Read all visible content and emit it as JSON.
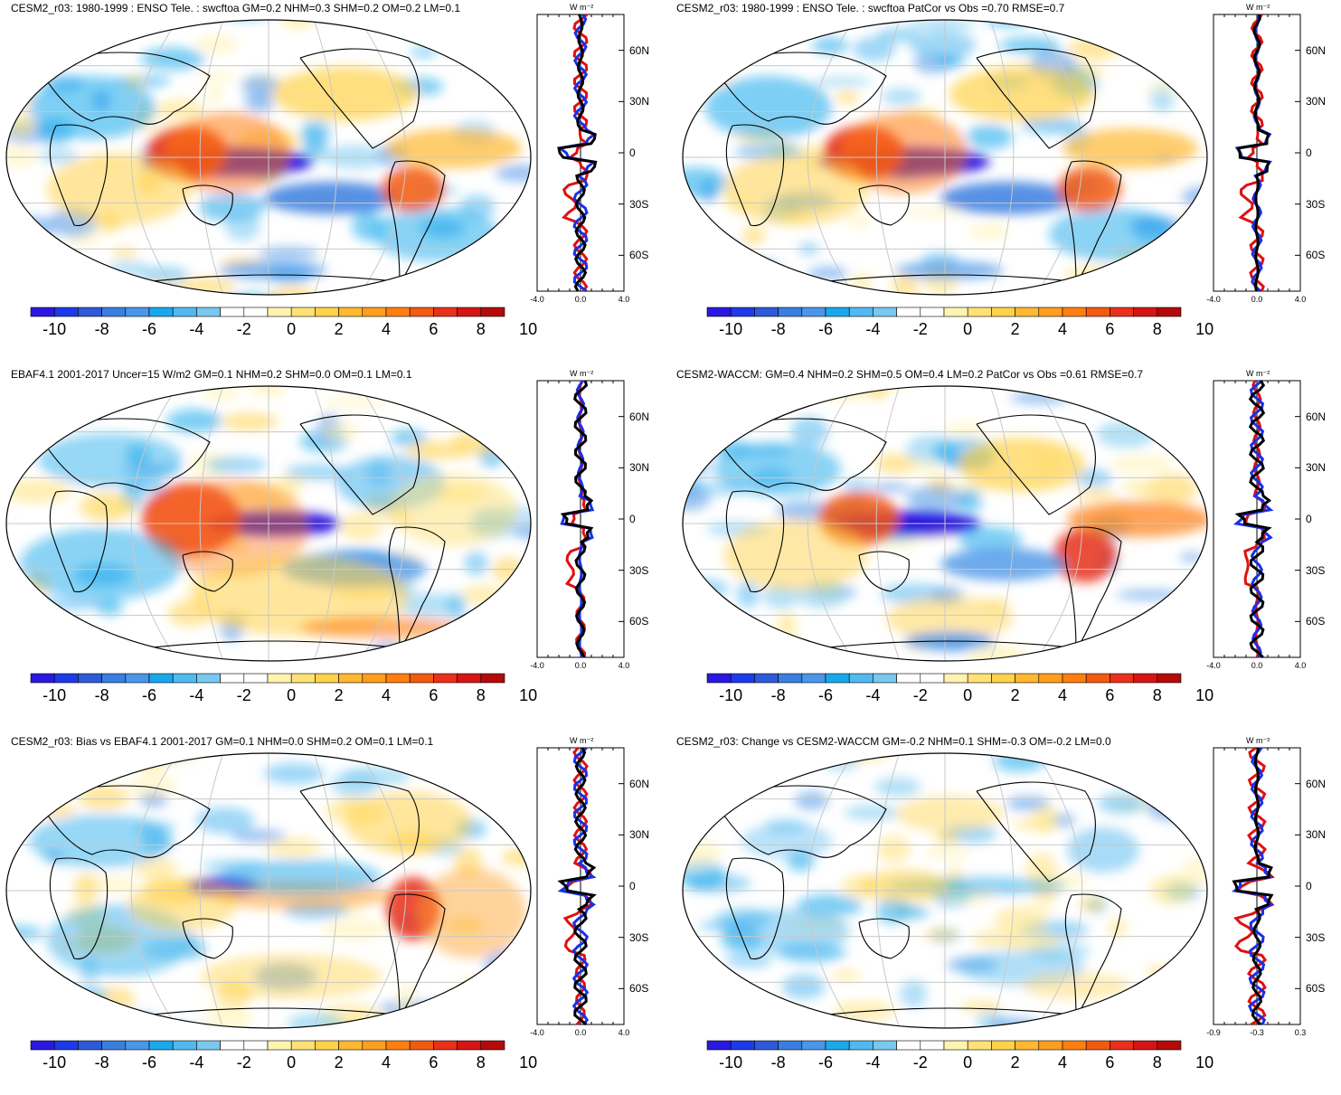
{
  "colorbar": {
    "colors": [
      "#2a18e0",
      "#1c3ae8",
      "#2e5ad8",
      "#3a7ee0",
      "#4a96e8",
      "#1aa8ec",
      "#52b8f0",
      "#78c8f0",
      "#ffffff",
      "#ffffff",
      "#fff3b0",
      "#ffe176",
      "#ffd24a",
      "#ffb830",
      "#ff9e1e",
      "#ff7e10",
      "#f25a10",
      "#e8301a",
      "#d61414",
      "#b40a0a"
    ],
    "labels": [
      "-10",
      "-8",
      "-6",
      "-4",
      "-2",
      "0",
      "2",
      "4",
      "6",
      "8",
      "10"
    ]
  },
  "latitudes": [
    "60N",
    "30N",
    "0",
    "30S",
    "60S"
  ],
  "units": "W m⁻²",
  "panels": [
    {
      "id": "p1",
      "title": "CESM2_r03: 1980-1999 : ENSO Tele. : swcftoa GM=0.2 NHM=0.3 SHM=0.2 OM=0.2 LM=0.1",
      "xticks": [
        "-4.0",
        "0.0",
        "4.0"
      ]
    },
    {
      "id": "p2",
      "title": "CESM2_r03: 1980-1999 : ENSO Tele. : swcftoa PatCor vs Obs =0.70 RMSE=0.7",
      "xticks": [
        "-4.0",
        "0.0",
        "4.0"
      ]
    },
    {
      "id": "p3",
      "title": "EBAF4.1 2001-2017 Uncer=15 W/m2 GM=0.1 NHM=0.2 SHM=0.0 OM=0.1 LM=0.1",
      "xticks": [
        "-4.0",
        "0.0",
        "4.0"
      ]
    },
    {
      "id": "p4",
      "title": "CESM2-WACCM: GM=0.4 NHM=0.2 SHM=0.5 OM=0.4 LM=0.2 PatCor vs Obs =0.61 RMSE=0.7",
      "xticks": [
        "-4.0",
        "0.0",
        "4.0"
      ]
    },
    {
      "id": "p5",
      "title": "CESM2_r03: Bias vs EBAF4.1 2001-2017 GM=0.1 NHM=0.0 SHM=0.2 OM=0.1 LM=0.1",
      "xticks": [
        "-4.0",
        "0.0",
        "4.0"
      ]
    },
    {
      "id": "p6",
      "title": "CESM2_r03: Change vs CESM2-WACCM GM=-0.2 NHM=0.1 SHM=-0.3 OM=-0.2 LM=0.0",
      "xticks": [
        "-0.9",
        "-0.3",
        "0.3"
      ]
    }
  ]
}
